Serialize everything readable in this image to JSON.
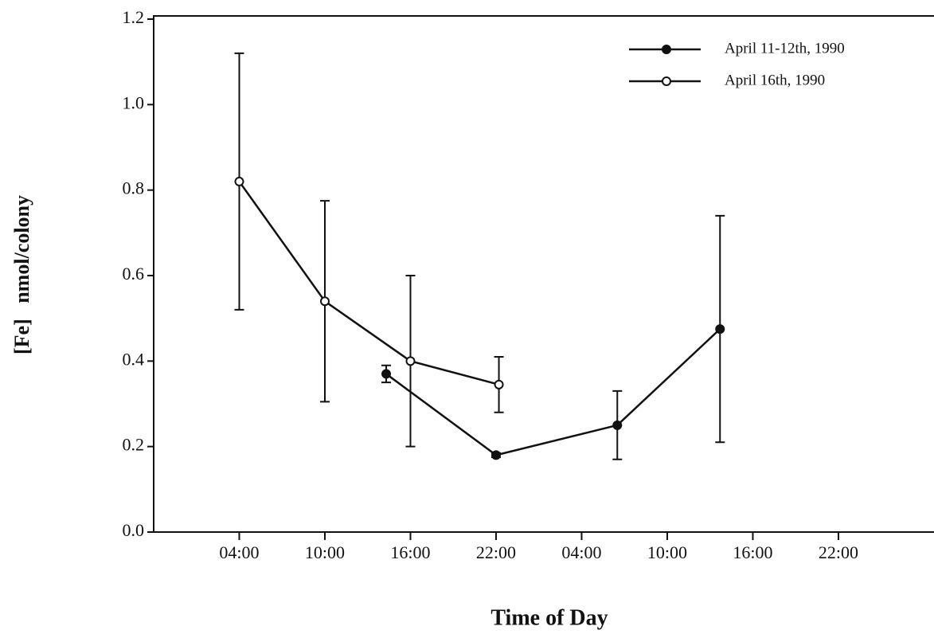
{
  "chart_data": {
    "type": "line",
    "x_label": "Time of Day",
    "y_label": "[Fe]   nmol/colony",
    "xlim": [
      0,
      54.7
    ],
    "xticks": [
      {
        "value": 6,
        "label": "04:00"
      },
      {
        "value": 12,
        "label": "10:00"
      },
      {
        "value": 18,
        "label": "16:00"
      },
      {
        "value": 24,
        "label": "22:00"
      },
      {
        "value": 30,
        "label": "04:00"
      },
      {
        "value": 36,
        "label": "10:00"
      },
      {
        "value": 42,
        "label": "16:00"
      },
      {
        "value": 48,
        "label": "22:00"
      }
    ],
    "ylim": [
      0,
      1.2
    ],
    "yticks": [
      {
        "value": 0,
        "label": "0.0"
      },
      0.2,
      0.4,
      0.6,
      0.8,
      {
        "value": 1,
        "label": "1.0"
      },
      1.2
    ],
    "legend": "upper right",
    "series": [
      {
        "name": "April 11-12th, 1990",
        "color": "#111",
        "marker": "filled",
        "x": [
          16.3,
          24,
          32.5,
          39.7
        ],
        "values": [
          0.37,
          0.18,
          0.25,
          0.475
        ],
        "errors": [
          0.02,
          0.005,
          0.08,
          0.265
        ]
      },
      {
        "name": "April 16th, 1990",
        "color": "#111",
        "marker": "open",
        "x": [
          6,
          12,
          18,
          24.2
        ],
        "values": [
          0.82,
          0.54,
          0.4,
          0.345
        ],
        "errors": [
          0.3,
          0.235,
          0.2,
          0.065
        ]
      }
    ]
  }
}
